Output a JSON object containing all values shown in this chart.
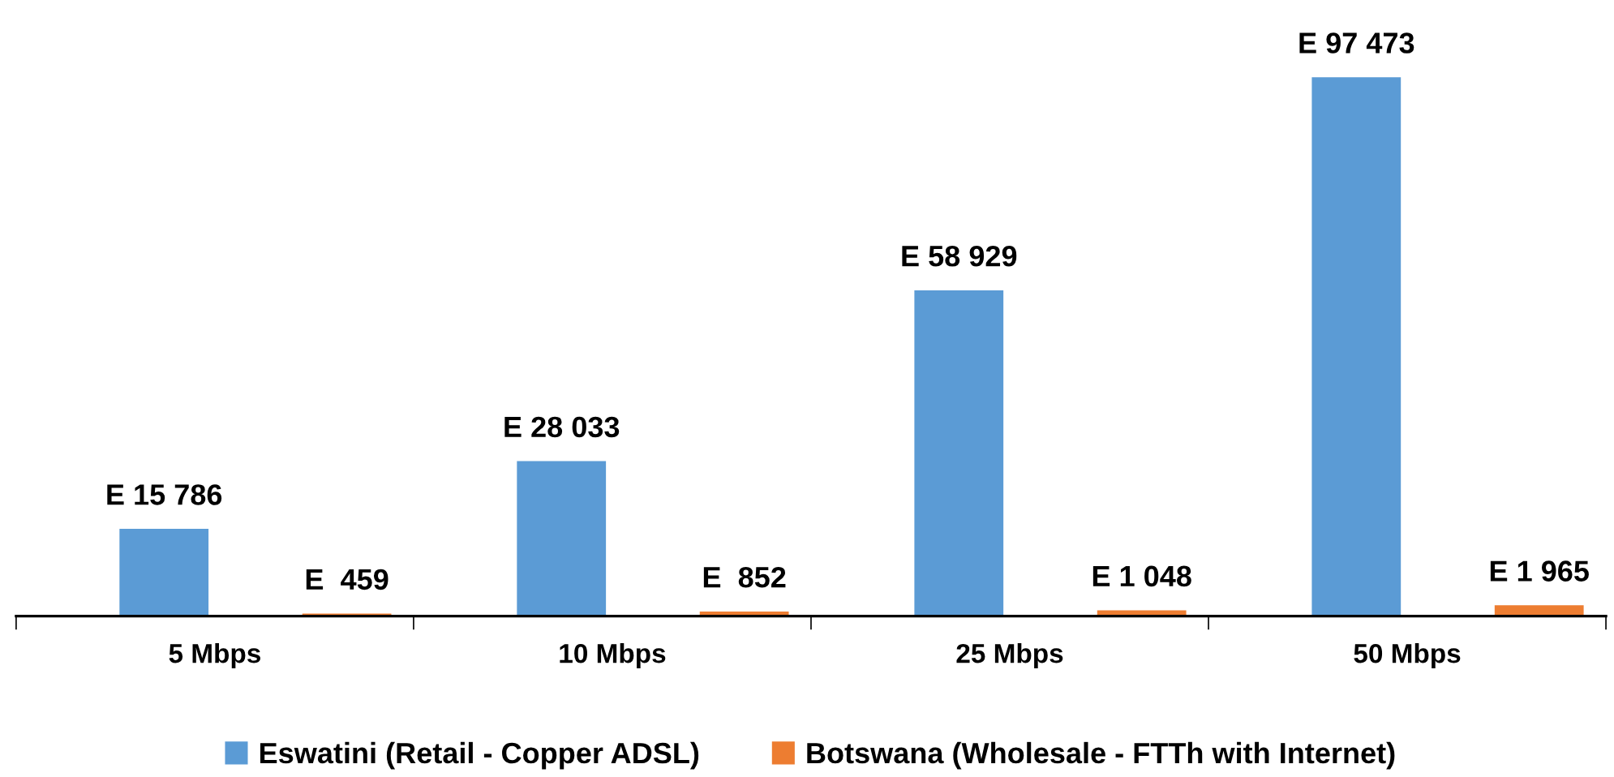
{
  "chart_data": {
    "type": "bar",
    "categories": [
      "5 Mbps",
      "10 Mbps",
      "25 Mbps",
      "50 Mbps"
    ],
    "series": [
      {
        "name": "Eswatini (Retail - Copper ADSL)",
        "color": "#5b9bd5",
        "values": [
          15786,
          28033,
          58929,
          97473
        ],
        "value_labels": [
          "E 15 786",
          "E 28 033",
          "E 58 929",
          "E 97 473"
        ]
      },
      {
        "name": "Botswana (Wholesale - FTTh with Internet)",
        "color": "#ed7d31",
        "values": [
          459,
          852,
          1048,
          1965
        ],
        "value_labels": [
          "E  459",
          "E  852",
          "E 1 048",
          "E 1 965"
        ]
      }
    ],
    "legend": "bottom",
    "grid": false,
    "tick_labels": "x"
  }
}
